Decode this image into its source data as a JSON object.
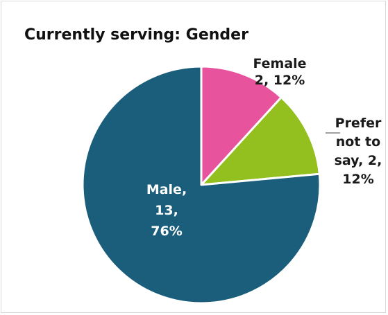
{
  "chart_data": {
    "type": "pie",
    "title": "Currently serving: Gender",
    "slices": [
      {
        "name": "Female",
        "value": 2,
        "percent": 12,
        "color": "#e8539e",
        "label_lines": [
          "Female",
          "2, 12%"
        ]
      },
      {
        "name": "Prefer not to say",
        "value": 2,
        "percent": 12,
        "color": "#93c01f",
        "label_lines": [
          "Prefer",
          "not to",
          "say, 2,",
          "12%"
        ]
      },
      {
        "name": "Male",
        "value": 13,
        "percent": 76,
        "color": "#1b5e7b",
        "label_lines": [
          "Male,",
          "13,",
          "76%"
        ]
      }
    ],
    "legend": "none"
  }
}
